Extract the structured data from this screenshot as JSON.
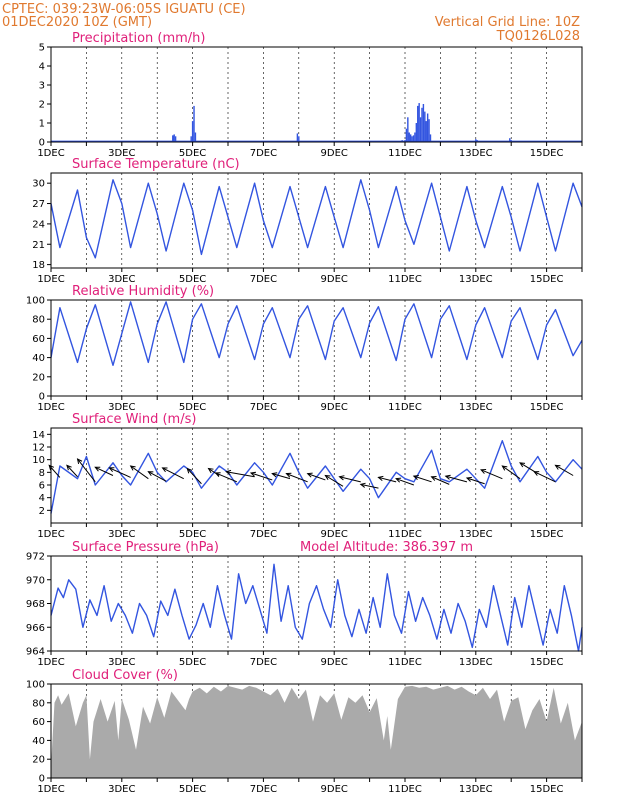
{
  "header": {
    "line1": "CPTEC:   039:23W-06:05S   IGUATU (CE)",
    "line2": "01DEC2020  10Z (GMT)",
    "grid_note": "Vertical Grid Line: 10Z",
    "code": "TQ0126L028"
  },
  "x_ticks": [
    "1DEC",
    "3DEC",
    "5DEC",
    "7DEC",
    "9DEC",
    "11DEC",
    "13DEC",
    "15DEC"
  ],
  "colors": {
    "line": "#3355e0",
    "bars": "#3355e0",
    "cloud": "#aaaaaa",
    "title": "#e0207a",
    "header": "#e0792f"
  },
  "chart_data": [
    {
      "id": "precip",
      "type": "bar",
      "title": "Precipitation (mm/h)",
      "ylim": [
        0,
        5
      ],
      "yticks": [
        0,
        1,
        2,
        3,
        4,
        5
      ],
      "xlim": [
        0,
        15
      ],
      "step_days": 0.04,
      "spikes": [
        {
          "x": 3.44,
          "y": 0.35
        },
        {
          "x": 3.48,
          "y": 0.4
        },
        {
          "x": 3.52,
          "y": 0.3
        },
        {
          "x": 3.96,
          "y": 0.3
        },
        {
          "x": 4.0,
          "y": 1.1
        },
        {
          "x": 4.04,
          "y": 1.9
        },
        {
          "x": 4.08,
          "y": 0.5
        },
        {
          "x": 6.96,
          "y": 0.45
        },
        {
          "x": 7.0,
          "y": 0.3
        },
        {
          "x": 9.92,
          "y": 0.1
        },
        {
          "x": 10.0,
          "y": 0.1
        },
        {
          "x": 10.04,
          "y": 0.7
        },
        {
          "x": 10.08,
          "y": 1.3
        },
        {
          "x": 10.12,
          "y": 0.5
        },
        {
          "x": 10.16,
          "y": 0.4
        },
        {
          "x": 10.2,
          "y": 0.3
        },
        {
          "x": 10.24,
          "y": 0.35
        },
        {
          "x": 10.28,
          "y": 0.5
        },
        {
          "x": 10.32,
          "y": 1.0
        },
        {
          "x": 10.36,
          "y": 1.9
        },
        {
          "x": 10.4,
          "y": 2.05
        },
        {
          "x": 10.44,
          "y": 1.3
        },
        {
          "x": 10.48,
          "y": 1.8
        },
        {
          "x": 10.52,
          "y": 2.0
        },
        {
          "x": 10.56,
          "y": 1.6
        },
        {
          "x": 10.6,
          "y": 1.1
        },
        {
          "x": 10.64,
          "y": 1.5
        },
        {
          "x": 10.68,
          "y": 1.2
        },
        {
          "x": 10.72,
          "y": 0.4
        },
        {
          "x": 12.0,
          "y": 0.15
        },
        {
          "x": 12.04,
          "y": 0.1
        },
        {
          "x": 12.96,
          "y": 0.2
        },
        {
          "x": 13.0,
          "y": 0.1
        }
      ]
    },
    {
      "id": "temp",
      "type": "line",
      "title": "Surface Temperature (nC)",
      "ylim": [
        17.5,
        31.5
      ],
      "yticks": [
        18,
        21,
        24,
        27,
        30
      ],
      "xlim": [
        0,
        15
      ],
      "x": [
        0,
        0.25,
        0.75,
        1.0,
        1.25,
        1.75,
        2.0,
        2.25,
        2.75,
        3.0,
        3.25,
        3.75,
        4.0,
        4.25,
        4.75,
        5.0,
        5.25,
        5.75,
        6.0,
        6.25,
        6.75,
        7.0,
        7.25,
        7.75,
        8.0,
        8.25,
        8.75,
        9.0,
        9.25,
        9.75,
        10.0,
        10.25,
        10.75,
        11.0,
        11.25,
        11.75,
        12.0,
        12.25,
        12.75,
        13.0,
        13.25,
        13.75,
        14.0,
        14.25,
        14.75,
        15.0
      ],
      "y": [
        27.0,
        20.5,
        29.0,
        22.0,
        19.0,
        30.5,
        27.0,
        20.5,
        30.0,
        25.5,
        20.0,
        30.0,
        26.0,
        19.5,
        29.5,
        25.0,
        20.5,
        30.0,
        24.5,
        20.5,
        29.5,
        25.0,
        20.5,
        29.5,
        25.0,
        20.5,
        30.5,
        26.0,
        20.5,
        29.5,
        24.5,
        21.0,
        30.0,
        25.0,
        20.0,
        29.5,
        24.5,
        20.5,
        29.5,
        25.0,
        20.0,
        30.0,
        25.0,
        20.0,
        30.0,
        26.5
      ]
    },
    {
      "id": "rh",
      "type": "line",
      "title": "Relative Humidity (%)",
      "ylim": [
        0,
        100
      ],
      "yticks": [
        0,
        20,
        40,
        60,
        80,
        100
      ],
      "xlim": [
        0,
        15
      ],
      "x": [
        0,
        0.25,
        0.75,
        1.0,
        1.25,
        1.75,
        2.0,
        2.25,
        2.75,
        3.0,
        3.25,
        3.75,
        4.0,
        4.25,
        4.75,
        5.0,
        5.25,
        5.75,
        6.0,
        6.25,
        6.75,
        7.0,
        7.25,
        7.75,
        8.0,
        8.25,
        8.75,
        9.0,
        9.25,
        9.75,
        10.0,
        10.25,
        10.75,
        11.0,
        11.25,
        11.75,
        12.0,
        12.25,
        12.75,
        13.0,
        13.25,
        13.75,
        14.0,
        14.25,
        14.75,
        15.0
      ],
      "y": [
        40,
        92,
        35,
        70,
        95,
        32,
        65,
        98,
        35,
        75,
        98,
        35,
        80,
        96,
        40,
        75,
        94,
        38,
        75,
        92,
        40,
        80,
        94,
        38,
        78,
        92,
        40,
        76,
        93,
        37,
        80,
        96,
        40,
        80,
        94,
        38,
        74,
        92,
        40,
        78,
        92,
        38,
        74,
        90,
        42,
        58
      ]
    },
    {
      "id": "wind",
      "type": "line",
      "title": "Surface Wind (m/s)",
      "ylim": [
        0,
        15
      ],
      "yticks": [
        2,
        4,
        6,
        8,
        10,
        12,
        14
      ],
      "xlim": [
        0,
        15
      ],
      "x": [
        0,
        0.25,
        0.75,
        1.0,
        1.25,
        1.75,
        2.0,
        2.25,
        2.75,
        3.0,
        3.25,
        3.75,
        4.0,
        4.25,
        4.75,
        5.0,
        5.25,
        5.75,
        6.0,
        6.25,
        6.75,
        7.0,
        7.25,
        7.75,
        8.0,
        8.25,
        8.75,
        9.0,
        9.25,
        9.75,
        10.0,
        10.25,
        10.75,
        11.0,
        11.25,
        11.75,
        12.0,
        12.25,
        12.75,
        13.0,
        13.25,
        13.75,
        14.0,
        14.25,
        14.75,
        15.0
      ],
      "y": [
        1.5,
        9.0,
        7.0,
        10.5,
        6.0,
        9.5,
        7.5,
        6.0,
        11.0,
        8.0,
        6.5,
        9.0,
        8.0,
        5.5,
        9.0,
        8.0,
        6.0,
        9.5,
        8.0,
        6.0,
        11.0,
        8.0,
        5.5,
        9.0,
        7.0,
        5.0,
        8.5,
        7.0,
        4.0,
        8.0,
        7.0,
        6.5,
        11.5,
        7.0,
        6.5,
        8.5,
        7.0,
        5.5,
        13.0,
        9.0,
        6.5,
        10.5,
        8.0,
        6.5,
        10.0,
        8.5
      ],
      "arrows": [
        {
          "x": 0.25,
          "y": 7.2,
          "dx": -0.3,
          "dy": 1.9
        },
        {
          "x": 0.75,
          "y": 7.3,
          "dx": -0.3,
          "dy": 1.8
        },
        {
          "x": 1.25,
          "y": 6.5,
          "dx": -0.5,
          "dy": 3.6
        },
        {
          "x": 1.75,
          "y": 7.5,
          "dx": -0.5,
          "dy": 1.3
        },
        {
          "x": 2.25,
          "y": 7.2,
          "dx": -0.6,
          "dy": 1.5
        },
        {
          "x": 2.75,
          "y": 7.0,
          "dx": -0.5,
          "dy": 2.0
        },
        {
          "x": 3.25,
          "y": 6.6,
          "dx": -0.5,
          "dy": 1.5
        },
        {
          "x": 3.75,
          "y": 7.0,
          "dx": -0.6,
          "dy": 1.7
        },
        {
          "x": 4.25,
          "y": 6.2,
          "dx": -0.4,
          "dy": 2.4
        },
        {
          "x": 4.75,
          "y": 7.5,
          "dx": -0.3,
          "dy": 1.1
        },
        {
          "x": 5.25,
          "y": 6.5,
          "dx": -0.6,
          "dy": 1.4
        },
        {
          "x": 5.75,
          "y": 7.3,
          "dx": -0.8,
          "dy": 0.8
        },
        {
          "x": 6.25,
          "y": 6.8,
          "dx": -0.6,
          "dy": 1.1
        },
        {
          "x": 6.75,
          "y": 7.0,
          "dx": -0.5,
          "dy": 0.8
        },
        {
          "x": 7.25,
          "y": 6.5,
          "dx": -0.6,
          "dy": 1.3
        },
        {
          "x": 7.75,
          "y": 6.8,
          "dx": -0.5,
          "dy": 1.0
        },
        {
          "x": 8.25,
          "y": 5.8,
          "dx": -0.5,
          "dy": 1.7
        },
        {
          "x": 8.75,
          "y": 6.5,
          "dx": -0.6,
          "dy": 0.8
        },
        {
          "x": 9.25,
          "y": 5.5,
          "dx": -0.5,
          "dy": 0.6
        },
        {
          "x": 9.75,
          "y": 6.5,
          "dx": -0.5,
          "dy": 0.7
        },
        {
          "x": 10.25,
          "y": 6.0,
          "dx": -0.5,
          "dy": 1.0
        },
        {
          "x": 10.75,
          "y": 6.5,
          "dx": -0.5,
          "dy": 0.9
        },
        {
          "x": 11.25,
          "y": 6.1,
          "dx": -0.5,
          "dy": 1.2
        },
        {
          "x": 11.75,
          "y": 6.5,
          "dx": -0.6,
          "dy": 0.9
        },
        {
          "x": 12.25,
          "y": 6.2,
          "dx": -0.5,
          "dy": 0.9
        },
        {
          "x": 12.75,
          "y": 7.0,
          "dx": -0.6,
          "dy": 1.4
        },
        {
          "x": 13.25,
          "y": 7.0,
          "dx": -0.5,
          "dy": 2.0
        },
        {
          "x": 13.75,
          "y": 7.8,
          "dx": -0.5,
          "dy": 1.7
        },
        {
          "x": 14.25,
          "y": 6.5,
          "dx": -0.6,
          "dy": 1.6
        },
        {
          "x": 14.75,
          "y": 7.5,
          "dx": -0.5,
          "dy": 1.6
        }
      ]
    },
    {
      "id": "pres",
      "type": "line",
      "title": "Surface Pressure (hPa)",
      "note": "Model Altitude: 386.397 m",
      "ylim": [
        964,
        972
      ],
      "yticks": [
        964,
        966,
        968,
        970,
        972
      ],
      "xlim": [
        0,
        15
      ],
      "x": [
        0,
        0.2,
        0.35,
        0.5,
        0.7,
        0.9,
        1.1,
        1.3,
        1.5,
        1.7,
        1.9,
        2.1,
        2.3,
        2.5,
        2.7,
        2.9,
        3.1,
        3.3,
        3.5,
        3.7,
        3.9,
        4.1,
        4.3,
        4.5,
        4.7,
        4.9,
        5.1,
        5.3,
        5.5,
        5.7,
        5.9,
        6.1,
        6.3,
        6.5,
        6.7,
        6.9,
        7.1,
        7.3,
        7.5,
        7.7,
        7.9,
        8.1,
        8.3,
        8.5,
        8.7,
        8.9,
        9.1,
        9.3,
        9.5,
        9.7,
        9.9,
        10.1,
        10.3,
        10.5,
        10.7,
        10.9,
        11.1,
        11.3,
        11.5,
        11.7,
        11.9,
        12.1,
        12.3,
        12.5,
        12.7,
        12.9,
        13.1,
        13.3,
        13.5,
        13.7,
        13.9,
        14.1,
        14.3,
        14.5,
        14.7,
        14.9,
        15.0
      ],
      "y": [
        967.0,
        969.3,
        968.5,
        970.0,
        969.2,
        966.0,
        968.3,
        967.0,
        969.5,
        966.5,
        968.0,
        967.0,
        965.5,
        968.0,
        967.0,
        965.2,
        968.2,
        967.0,
        969.2,
        967.0,
        965.0,
        966.2,
        968.0,
        966.0,
        969.5,
        967.0,
        965.0,
        970.5,
        968.0,
        969.5,
        967.5,
        965.5,
        971.3,
        966.5,
        969.5,
        966.0,
        965.0,
        968.0,
        969.5,
        967.5,
        966.0,
        970.0,
        967.0,
        965.2,
        967.5,
        965.5,
        968.5,
        966.0,
        970.5,
        967.0,
        965.5,
        969.0,
        966.5,
        968.5,
        967.0,
        965.0,
        967.5,
        965.5,
        968.0,
        966.5,
        964.3,
        967.5,
        966.0,
        969.5,
        967.0,
        964.5,
        968.5,
        966.0,
        969.5,
        967.0,
        964.5,
        967.5,
        965.5,
        969.5,
        967.0,
        964.0,
        966.0
      ]
    },
    {
      "id": "cloud",
      "type": "area",
      "title": "Cloud Cover (%)",
      "ylim": [
        0,
        100
      ],
      "yticks": [
        0,
        20,
        40,
        60,
        80,
        100
      ],
      "xlim": [
        0,
        15
      ],
      "x": [
        0,
        0.1,
        0.2,
        0.3,
        0.5,
        0.7,
        0.9,
        1.0,
        1.1,
        1.2,
        1.4,
        1.6,
        1.8,
        1.9,
        2.0,
        2.2,
        2.4,
        2.6,
        2.8,
        3.0,
        3.2,
        3.4,
        3.6,
        3.8,
        3.9,
        4.0,
        4.2,
        4.4,
        4.6,
        4.8,
        5.0,
        5.2,
        5.4,
        5.6,
        5.8,
        6.0,
        6.2,
        6.4,
        6.6,
        6.8,
        7.0,
        7.2,
        7.4,
        7.6,
        7.8,
        8.0,
        8.2,
        8.4,
        8.6,
        8.8,
        9.0,
        9.2,
        9.4,
        9.5,
        9.6,
        9.8,
        10.0,
        10.2,
        10.4,
        10.6,
        10.8,
        11.0,
        11.2,
        11.4,
        11.6,
        11.8,
        12.0,
        12.2,
        12.4,
        12.6,
        12.8,
        13.0,
        13.2,
        13.4,
        13.6,
        13.8,
        14.0,
        14.2,
        14.4,
        14.6,
        14.8,
        15.0
      ],
      "y": [
        12,
        80,
        88,
        78,
        90,
        55,
        80,
        88,
        20,
        60,
        84,
        60,
        82,
        40,
        84,
        62,
        30,
        76,
        58,
        86,
        64,
        92,
        82,
        72,
        84,
        92,
        96,
        90,
        97,
        92,
        98,
        96,
        94,
        98,
        96,
        92,
        88,
        95,
        80,
        96,
        84,
        94,
        60,
        88,
        80,
        90,
        62,
        86,
        80,
        88,
        70,
        85,
        40,
        66,
        30,
        84,
        97,
        98,
        96,
        97,
        94,
        96,
        98,
        94,
        97,
        92,
        88,
        96,
        84,
        94,
        60,
        82,
        86,
        52,
        72,
        84,
        60,
        96,
        58,
        80,
        40,
        60
      ]
    }
  ]
}
